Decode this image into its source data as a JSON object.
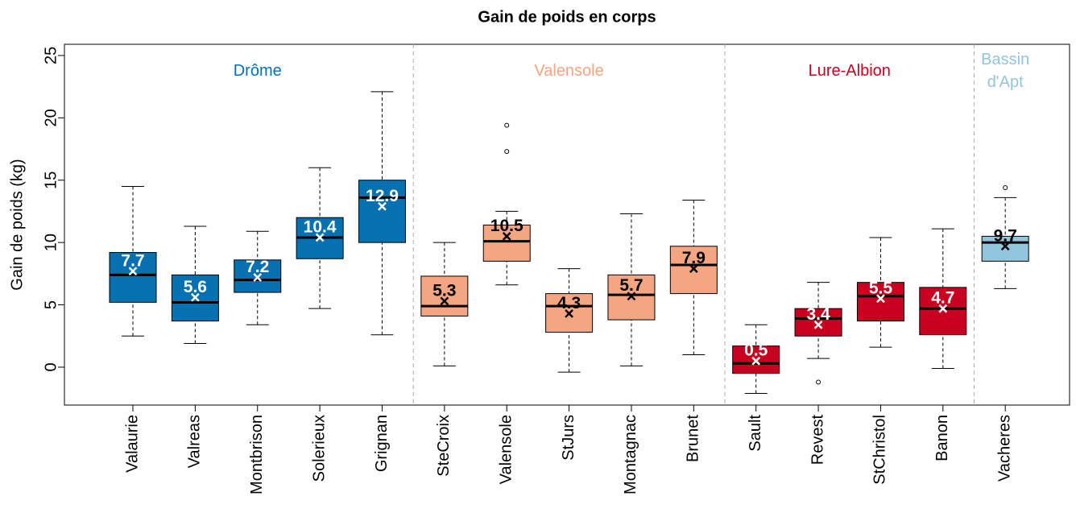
{
  "chart_data": {
    "type": "box",
    "title": "Gain de poids en corps",
    "y_label": "Gain de poids (kg)",
    "ylim": [
      -3.04,
      25.9
    ],
    "yticks": [
      0,
      5,
      10,
      15,
      20,
      25
    ],
    "groups": [
      {
        "label": "Drôme",
        "color": "#0571b0",
        "mean_label_color": "#ffffff",
        "boxes": [
          {
            "category": "Valaurie",
            "min": 2.5,
            "q1": 5.2,
            "median": 7.4,
            "q3": 9.2,
            "max": 14.5,
            "mean": 7.7,
            "outliers": []
          },
          {
            "category": "Valreas",
            "min": 1.9,
            "q1": 3.7,
            "median": 5.2,
            "q3": 7.4,
            "max": 11.3,
            "mean": 5.6,
            "outliers": []
          },
          {
            "category": "Montbrison",
            "min": 3.4,
            "q1": 6.0,
            "median": 7.0,
            "q3": 8.6,
            "max": 10.9,
            "mean": 7.2,
            "outliers": []
          },
          {
            "category": "Solerieux",
            "min": 4.7,
            "q1": 8.7,
            "median": 10.4,
            "q3": 12.0,
            "max": 16.0,
            "mean": 10.4,
            "outliers": []
          },
          {
            "category": "Grignan",
            "min": 2.6,
            "q1": 10.0,
            "median": 13.6,
            "q3": 15.0,
            "max": 22.1,
            "mean": 12.9,
            "outliers": []
          }
        ]
      },
      {
        "label": "Valensole",
        "color": "#f4a582",
        "mean_label_color": "#000000",
        "boxes": [
          {
            "category": "SteCroix",
            "min": 0.1,
            "q1": 4.1,
            "median": 4.9,
            "q3": 7.3,
            "max": 10.0,
            "mean": 5.3,
            "outliers": []
          },
          {
            "category": "Valensole",
            "min": 6.6,
            "q1": 8.5,
            "median": 10.1,
            "q3": 11.4,
            "max": 12.5,
            "mean": 10.5,
            "outliers": [
              17.3,
              19.4
            ]
          },
          {
            "category": "StJurs",
            "min": -0.4,
            "q1": 2.8,
            "median": 4.9,
            "q3": 5.9,
            "max": 7.9,
            "mean": 4.3,
            "outliers": []
          },
          {
            "category": "Montagnac",
            "min": 0.1,
            "q1": 3.8,
            "median": 5.8,
            "q3": 7.4,
            "max": 12.3,
            "mean": 5.7,
            "outliers": []
          },
          {
            "category": "Brunet",
            "min": 1.0,
            "q1": 5.9,
            "median": 8.2,
            "q3": 9.7,
            "max": 13.4,
            "mean": 7.9,
            "outliers": []
          }
        ]
      },
      {
        "label": "Lure-Albion",
        "color": "#ca0020",
        "mean_label_color": "#ffffff",
        "boxes": [
          {
            "category": "Sault",
            "min": -2.1,
            "q1": -0.5,
            "median": 0.3,
            "q3": 1.7,
            "max": 3.4,
            "mean": 0.5,
            "outliers": []
          },
          {
            "category": "Revest",
            "min": 0.7,
            "q1": 2.5,
            "median": 3.9,
            "q3": 4.7,
            "max": 6.8,
            "mean": 3.4,
            "outliers": [
              -1.2
            ]
          },
          {
            "category": "StChristol",
            "min": 1.6,
            "q1": 3.7,
            "median": 5.7,
            "q3": 6.8,
            "max": 10.4,
            "mean": 5.5,
            "outliers": []
          },
          {
            "category": "Banon",
            "min": -0.1,
            "q1": 2.6,
            "median": 4.7,
            "q3": 6.4,
            "max": 11.1,
            "mean": 4.7,
            "outliers": []
          }
        ]
      },
      {
        "label": "Bassin d'Apt",
        "color": "#92c5de",
        "mean_label_color": "#000000",
        "boxes": [
          {
            "category": "Vacheres",
            "min": 6.3,
            "q1": 8.5,
            "median": 10.0,
            "q3": 10.5,
            "max": 13.6,
            "mean": 9.7,
            "outliers": [
              14.4
            ]
          }
        ]
      }
    ]
  }
}
